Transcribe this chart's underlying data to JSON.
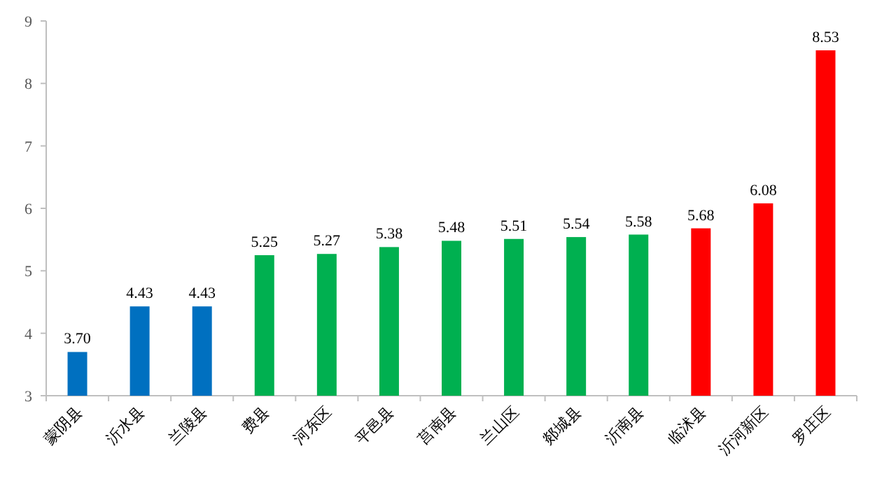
{
  "chart_data": {
    "type": "bar",
    "categories": [
      "蒙阴县",
      "沂水县",
      "兰陵县",
      "费县",
      "河东区",
      "平邑县",
      "莒南县",
      "兰山区",
      "郯城县",
      "沂南县",
      "临沭县",
      "沂河新区",
      "罗庄区"
    ],
    "values": [
      3.7,
      4.43,
      4.43,
      5.25,
      5.27,
      5.38,
      5.48,
      5.51,
      5.54,
      5.58,
      5.68,
      6.08,
      8.53
    ],
    "value_labels": [
      "3.70",
      "4.43",
      "4.43",
      "5.25",
      "5.27",
      "5.38",
      "5.48",
      "5.51",
      "5.54",
      "5.58",
      "5.68",
      "6.08",
      "8.53"
    ],
    "colors": [
      "#0070c0",
      "#0070c0",
      "#0070c0",
      "#00b050",
      "#00b050",
      "#00b050",
      "#00b050",
      "#00b050",
      "#00b050",
      "#00b050",
      "#ff0000",
      "#ff0000",
      "#ff0000"
    ],
    "ylim": [
      3,
      9
    ],
    "yticks": [
      3,
      4,
      5,
      6,
      7,
      8,
      9
    ]
  }
}
